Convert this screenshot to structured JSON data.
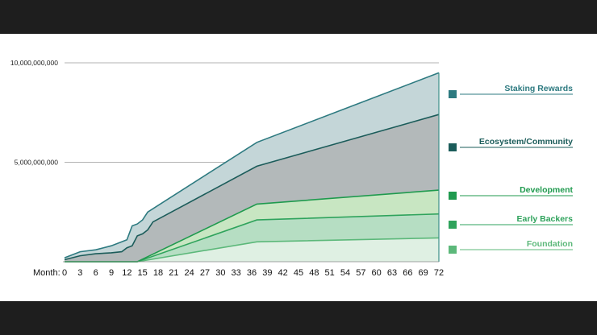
{
  "chart_data": {
    "type": "area",
    "stacked": true,
    "x_prefix": "Month:",
    "x_ticks": [
      0,
      3,
      6,
      9,
      12,
      15,
      18,
      21,
      24,
      27,
      30,
      33,
      36,
      39,
      42,
      45,
      48,
      51,
      54,
      57,
      60,
      63,
      66,
      69,
      72
    ],
    "y_ticks": [
      {
        "value": 10000000000,
        "label": "10,000,000,000"
      },
      {
        "value": 5000000000,
        "label": "5,000,000,000"
      }
    ],
    "ylim": [
      0,
      10000000000
    ],
    "xlim": [
      0,
      72
    ],
    "series": [
      {
        "name": "Foundation",
        "color": "#5cb87a",
        "fill": "#dff0e3",
        "points": [
          [
            0,
            0
          ],
          [
            14,
            0
          ],
          [
            37,
            1000000000
          ],
          [
            72,
            1200000000
          ]
        ]
      },
      {
        "name": "Early Backers",
        "color": "#2fa35c",
        "fill": "#b6dec3",
        "points": [
          [
            0,
            0
          ],
          [
            14,
            0
          ],
          [
            37,
            2100000000
          ],
          [
            72,
            2400000000
          ]
        ]
      },
      {
        "name": "Development",
        "color": "#1f9a4e",
        "fill": "#c8e6c2",
        "points": [
          [
            0,
            0
          ],
          [
            14,
            0
          ],
          [
            37,
            2900000000
          ],
          [
            72,
            3600000000
          ]
        ]
      },
      {
        "name": "Ecosystem/Community",
        "color": "#1b5c5a",
        "fill": "#b3b9ba",
        "points": [
          [
            0,
            100000000
          ],
          [
            3,
            300000000
          ],
          [
            6,
            400000000
          ],
          [
            9,
            450000000
          ],
          [
            11,
            500000000
          ],
          [
            12,
            700000000
          ],
          [
            13,
            800000000
          ],
          [
            14,
            1300000000
          ],
          [
            15,
            1400000000
          ],
          [
            16,
            1600000000
          ],
          [
            17,
            2000000000
          ],
          [
            37,
            4800000000
          ],
          [
            72,
            7400000000
          ]
        ]
      },
      {
        "name": "Staking Rewards",
        "color": "#2d7a80",
        "fill": "#c4d6d8",
        "points": [
          [
            0,
            200000000
          ],
          [
            3,
            500000000
          ],
          [
            6,
            600000000
          ],
          [
            9,
            800000000
          ],
          [
            11,
            1000000000
          ],
          [
            12,
            1100000000
          ],
          [
            13,
            1800000000
          ],
          [
            14,
            1900000000
          ],
          [
            15,
            2100000000
          ],
          [
            16,
            2500000000
          ],
          [
            37,
            6000000000
          ],
          [
            72,
            9500000000
          ]
        ]
      }
    ]
  }
}
